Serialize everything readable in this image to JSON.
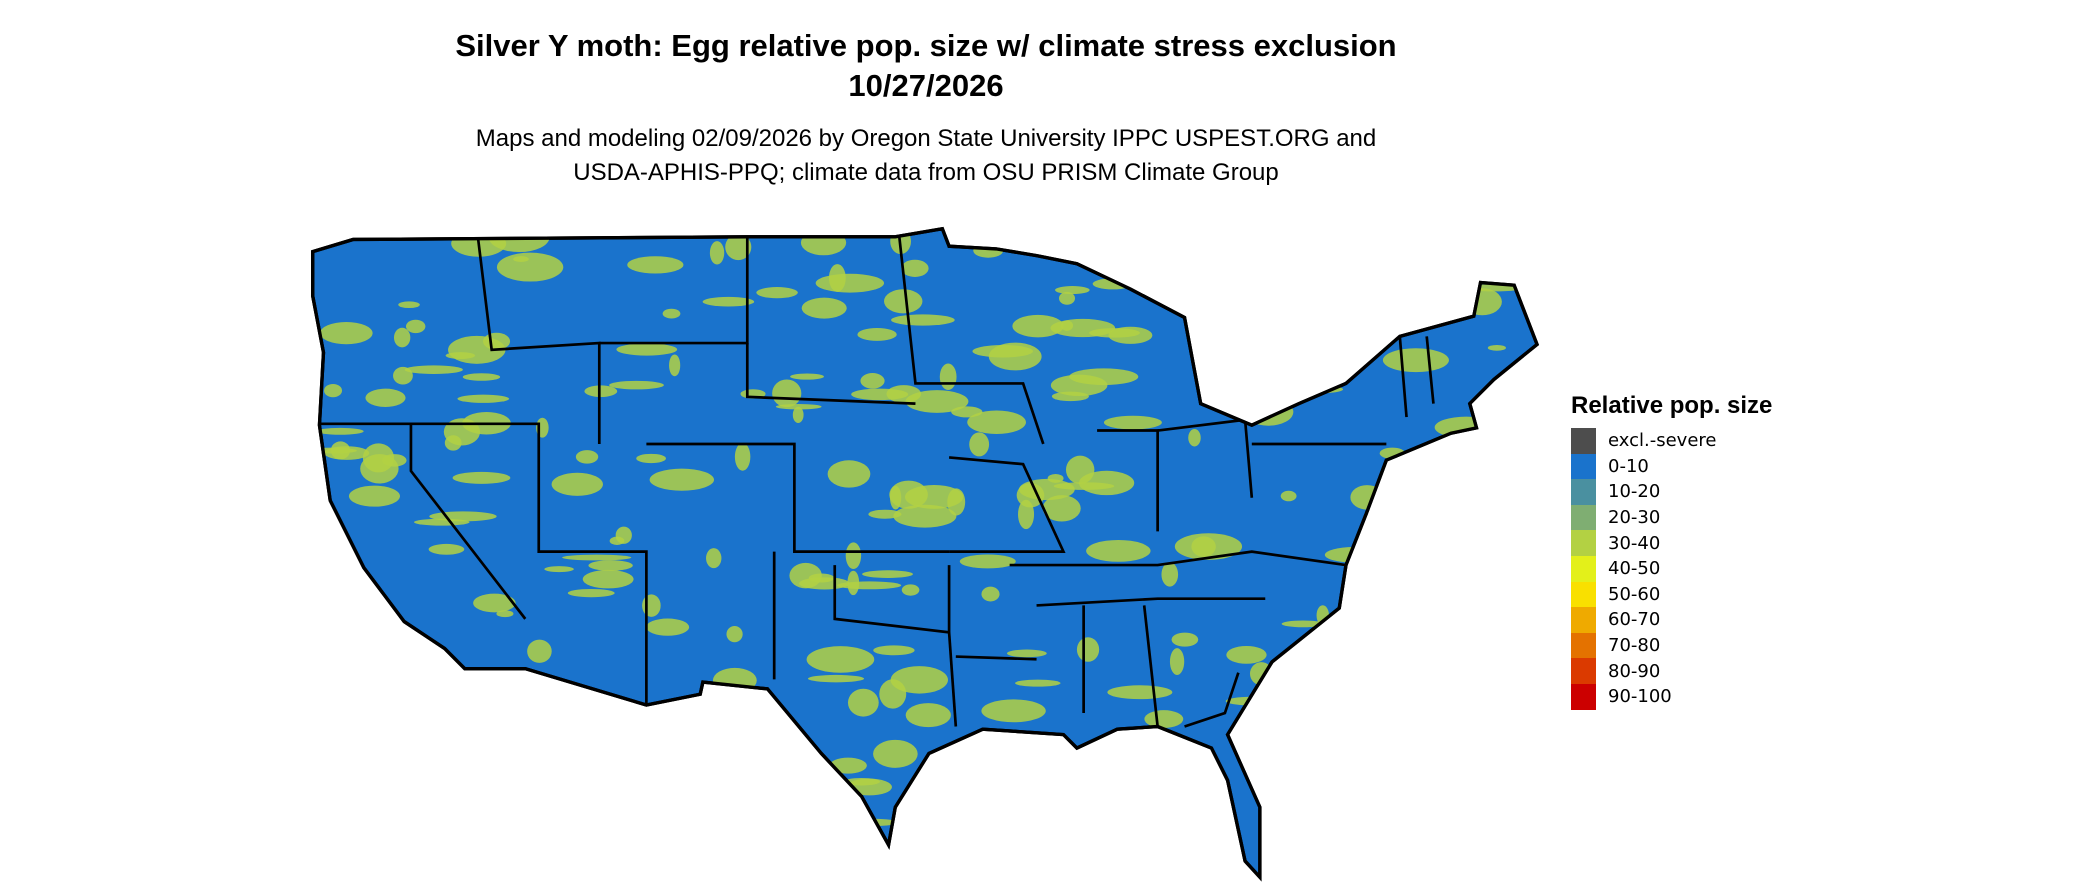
{
  "title": {
    "line1": "Silver Y moth: Egg relative pop. size w/ climate stress exclusion",
    "line2": "10/27/2026"
  },
  "subtitle": {
    "line1": "Maps and modeling 02/09/2026 by Oregon State University IPPC USPEST.ORG and",
    "line2": "USDA-APHIS-PPQ; climate data from OSU PRISM Climate Group"
  },
  "map": {
    "region": "Contiguous United States",
    "base_color": "#1a73cc",
    "patch_color": "#b3d143",
    "border_color": "#000000"
  },
  "legend": {
    "title": "Relative pop. size",
    "items": [
      {
        "label": "excl.-severe",
        "color": "#4d4d4d"
      },
      {
        "label": "0-10",
        "color": "#1a73cc"
      },
      {
        "label": "10-20",
        "color": "#4a90a0"
      },
      {
        "label": "20-30",
        "color": "#7fae72"
      },
      {
        "label": "30-40",
        "color": "#b3d143"
      },
      {
        "label": "40-50",
        "color": "#e3f01a"
      },
      {
        "label": "50-60",
        "color": "#f9e000"
      },
      {
        "label": "60-70",
        "color": "#efaa00"
      },
      {
        "label": "70-80",
        "color": "#e47200"
      },
      {
        "label": "80-90",
        "color": "#db3a00"
      },
      {
        "label": "90-100",
        "color": "#cc0000"
      }
    ]
  }
}
